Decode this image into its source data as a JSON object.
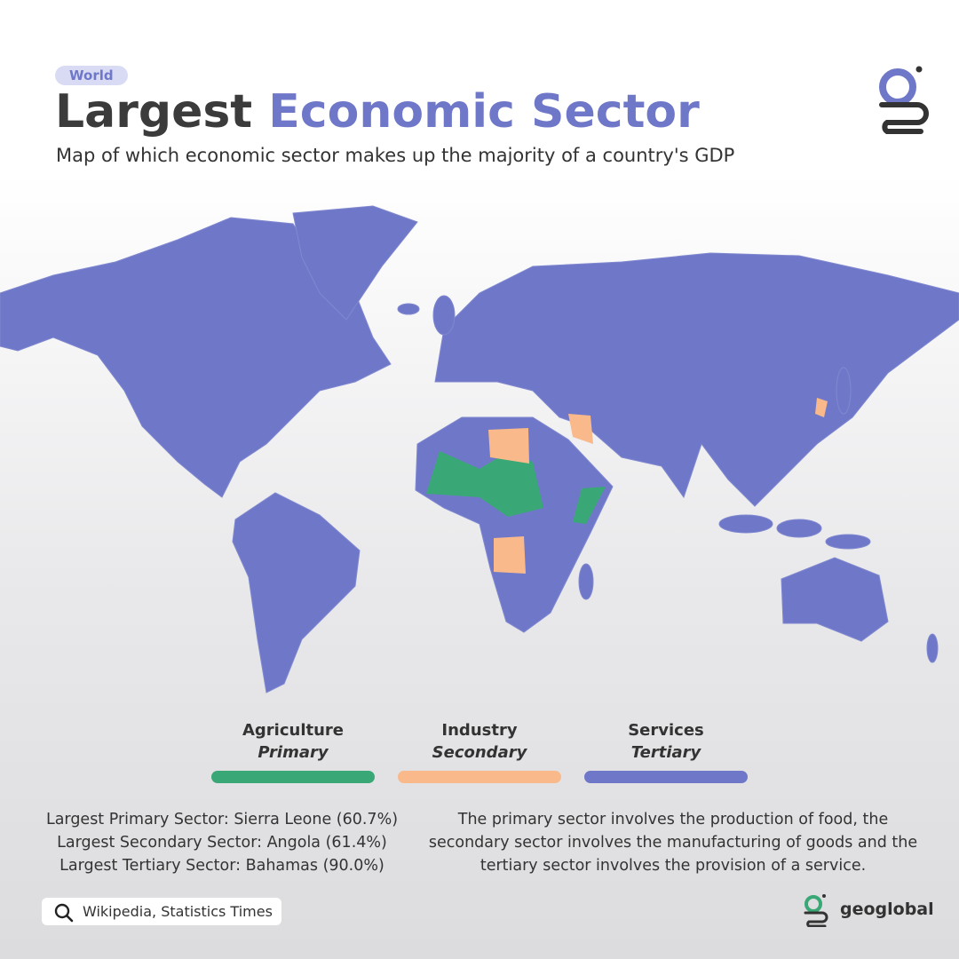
{
  "tag": "World",
  "title": {
    "part1": "Largest",
    "part2": "Economic Sector"
  },
  "subtitle": "Map of which economic sector makes up the majority of a country's GDP",
  "legend": [
    {
      "name": "Agriculture",
      "sector": "Primary",
      "color": "#3aa876"
    },
    {
      "name": "Industry",
      "sector": "Secondary",
      "color": "#f9b98a"
    },
    {
      "name": "Services",
      "sector": "Tertiary",
      "color": "#6f78c8"
    }
  ],
  "facts": [
    "Largest Primary Sector: Sierra Leone (60.7%)",
    "Largest Secondary Sector: Angola (61.4%)",
    "Largest Tertiary Sector: Bahamas (90.0%)"
  ],
  "description": "The primary sector involves the production of food, the secondary sector involves the manufacturing of goods and the tertiary sector involves the provision of a service.",
  "source": "Wikipedia, Statistics Times",
  "brand": "geoglobal"
}
